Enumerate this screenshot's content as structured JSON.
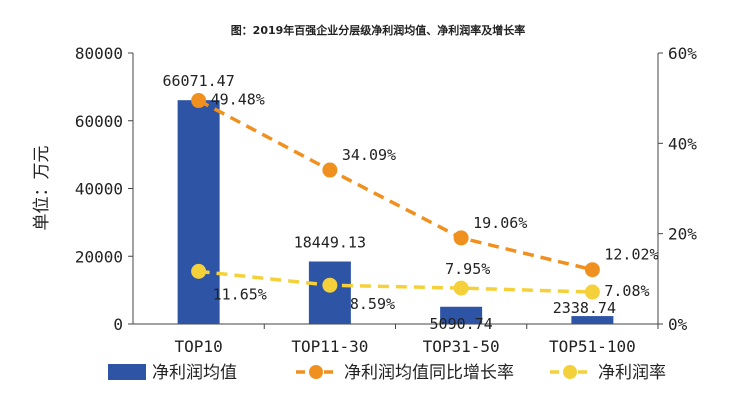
{
  "chart_data": {
    "type": "bar+line",
    "title": "图：2019年百强企业分层级净利润均值、净利润率及增长率",
    "categories": [
      "TOP10",
      "TOP11-30",
      "TOP31-50",
      "TOP51-100"
    ],
    "ylabel": "单位：万元",
    "ylim": [
      0,
      80000
    ],
    "yticks": [
      "0",
      "20000",
      "40000",
      "60000",
      "80000"
    ],
    "y2lim": [
      0,
      60
    ],
    "y2ticks": [
      "0%",
      "20%",
      "40%",
      "60%"
    ],
    "series": [
      {
        "name": "净利润均值",
        "type": "bar",
        "axis": "left",
        "color": "#2e55a5",
        "values": [
          66071.47,
          18449.13,
          5090.74,
          2338.74
        ],
        "labels": [
          "66071.47",
          "18449.13",
          "5090.74",
          "2338.74"
        ]
      },
      {
        "name": "净利润均值同比增长率",
        "type": "line",
        "axis": "right",
        "style": "dashed",
        "color": "#f0901e",
        "values": [
          49.48,
          34.09,
          19.06,
          12.02
        ],
        "labels": [
          "49.48%",
          "34.09%",
          "19.06%",
          "12.02%"
        ]
      },
      {
        "name": "净利润率",
        "type": "line",
        "axis": "right",
        "style": "dashed",
        "color": "#f4d13a",
        "values": [
          11.65,
          8.59,
          7.95,
          7.08
        ],
        "labels": [
          "11.65%",
          "8.59%",
          "7.95%",
          "7.08%"
        ]
      }
    ],
    "legend": "bottom"
  }
}
